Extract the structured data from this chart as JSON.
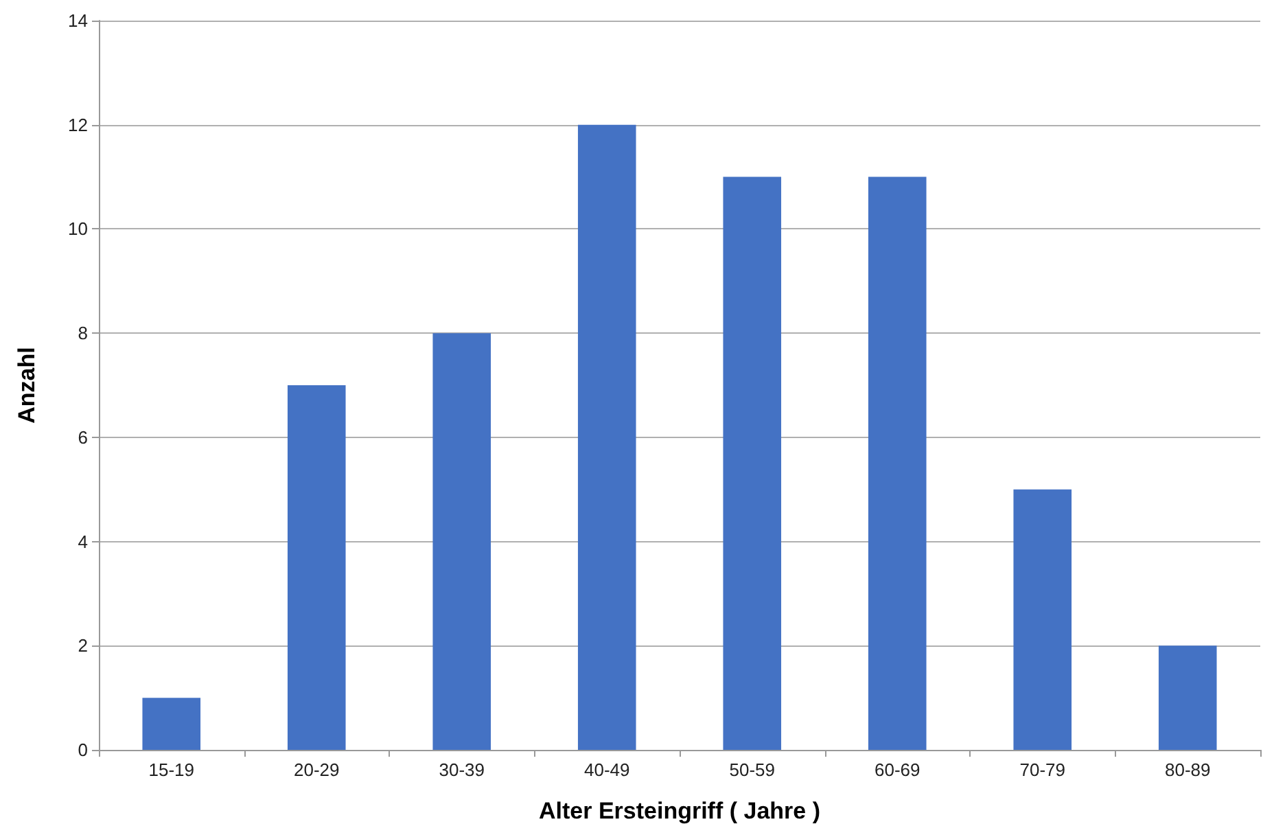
{
  "chart_data": {
    "type": "bar",
    "xlabel": "Alter Ersteingriff ( Jahre )",
    "ylabel": "Anzahl",
    "categories": [
      "15-19",
      "20-29",
      "30-39",
      "40-49",
      "50-59",
      "60-69",
      "70-79",
      "80-89"
    ],
    "values": [
      1,
      7,
      8,
      12,
      11,
      11,
      5,
      2
    ],
    "color": "#4472c4",
    "ylim": [
      0,
      14
    ],
    "yticks": [
      0,
      2,
      4,
      6,
      8,
      10,
      12,
      14
    ],
    "grid": "y"
  }
}
